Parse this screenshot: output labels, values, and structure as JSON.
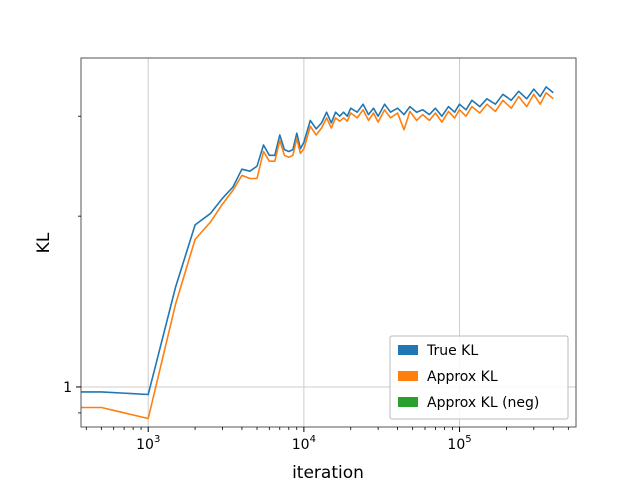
{
  "chart_data": {
    "type": "line",
    "title": "",
    "xlabel": "iteration",
    "ylabel": "KL",
    "xscale": "log",
    "yscale": "log",
    "xlim": [
      370,
      560000
    ],
    "ylim": [
      0.85,
      3.8
    ],
    "grid": true,
    "legend_position": "lower-right",
    "x_ticks": [
      {
        "value": 1000,
        "base": "10",
        "exp": "3"
      },
      {
        "value": 10000,
        "base": "10",
        "exp": "4"
      },
      {
        "value": 100000,
        "base": "10",
        "exp": "5"
      }
    ],
    "y_ticks": [
      {
        "value": 1,
        "label": "1"
      }
    ],
    "y_minor_ticks": [
      0.9,
      2,
      3
    ],
    "series": [
      {
        "name": "True KL",
        "color": "#1f77b4",
        "x": [
          370,
          500,
          1000,
          1500,
          2000,
          2500,
          3000,
          3500,
          4000,
          4500,
          5000,
          5500,
          6000,
          6500,
          7000,
          7500,
          8000,
          8500,
          9000,
          9500,
          10000,
          11000,
          12000,
          13000,
          14000,
          15000,
          16000,
          17000,
          18000,
          19000,
          20000,
          22000,
          24000,
          26000,
          28000,
          30000,
          33000,
          36000,
          40000,
          44000,
          48000,
          53000,
          58000,
          64000,
          70000,
          77000,
          85000,
          93000,
          100000,
          110000,
          120000,
          135000,
          150000,
          170000,
          190000,
          215000,
          240000,
          270000,
          300000,
          330000,
          360000,
          400000
        ],
        "values": [
          0.98,
          0.98,
          0.97,
          1.5,
          1.93,
          2.02,
          2.15,
          2.25,
          2.42,
          2.4,
          2.45,
          2.67,
          2.56,
          2.56,
          2.78,
          2.62,
          2.6,
          2.62,
          2.8,
          2.63,
          2.7,
          2.95,
          2.85,
          2.92,
          3.05,
          2.92,
          3.05,
          3.0,
          3.05,
          3.0,
          3.1,
          3.05,
          3.15,
          3.02,
          3.1,
          3.0,
          3.15,
          3.05,
          3.1,
          3.02,
          3.12,
          3.05,
          3.08,
          3.02,
          3.1,
          3.0,
          3.12,
          3.05,
          3.15,
          3.08,
          3.2,
          3.12,
          3.22,
          3.15,
          3.28,
          3.2,
          3.32,
          3.22,
          3.35,
          3.25,
          3.38,
          3.3
        ]
      },
      {
        "name": "Approx KL",
        "color": "#ff7f0e",
        "x": [
          370,
          500,
          1000,
          1500,
          2000,
          2500,
          3000,
          3500,
          4000,
          4500,
          5000,
          5500,
          6000,
          6500,
          7000,
          7500,
          8000,
          8500,
          9000,
          9500,
          10000,
          11000,
          12000,
          13000,
          14000,
          15000,
          16000,
          17000,
          18000,
          19000,
          20000,
          22000,
          24000,
          26000,
          28000,
          30000,
          33000,
          36000,
          40000,
          44000,
          48000,
          53000,
          58000,
          64000,
          70000,
          77000,
          85000,
          93000,
          100000,
          110000,
          120000,
          135000,
          150000,
          170000,
          190000,
          215000,
          240000,
          270000,
          300000,
          330000,
          360000,
          400000
        ],
        "values": [
          0.92,
          0.92,
          0.88,
          1.4,
          1.82,
          1.95,
          2.1,
          2.22,
          2.36,
          2.33,
          2.33,
          2.6,
          2.5,
          2.5,
          2.72,
          2.56,
          2.54,
          2.56,
          2.74,
          2.58,
          2.63,
          2.88,
          2.78,
          2.86,
          2.98,
          2.86,
          2.98,
          2.94,
          2.98,
          2.94,
          3.04,
          2.98,
          3.08,
          2.95,
          3.04,
          2.93,
          3.08,
          2.98,
          3.04,
          2.84,
          3.06,
          2.95,
          3.02,
          2.95,
          3.04,
          2.93,
          3.06,
          2.98,
          3.08,
          3.0,
          3.12,
          3.04,
          3.15,
          3.06,
          3.2,
          3.1,
          3.25,
          3.12,
          3.28,
          3.15,
          3.3,
          3.22
        ]
      },
      {
        "name": "Approx KL (neg)",
        "color": "#2ca02c",
        "x": [],
        "values": []
      }
    ]
  }
}
